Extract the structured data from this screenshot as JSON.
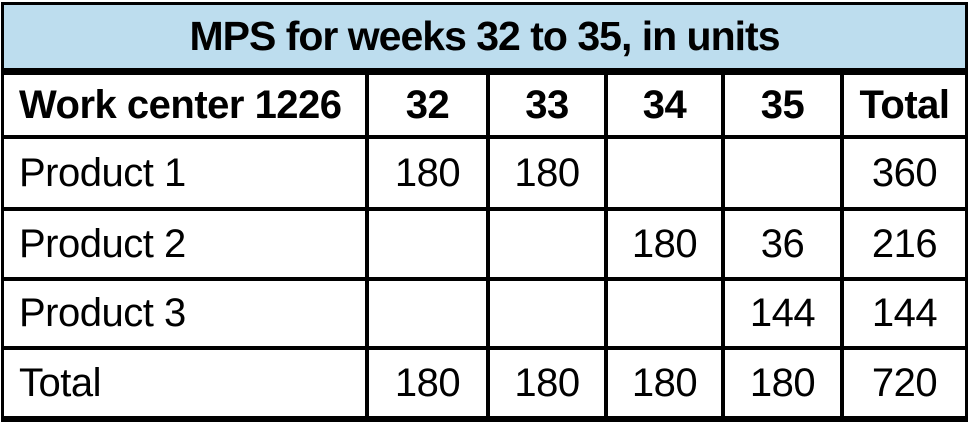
{
  "chart_data": {
    "type": "table",
    "title": "MPS for weeks 32 to 35, in units",
    "columns": [
      "Work center 1226",
      "32",
      "33",
      "34",
      "35",
      "Total"
    ],
    "rows": [
      [
        "Product 1",
        180,
        180,
        null,
        null,
        360
      ],
      [
        "Product 2",
        null,
        null,
        180,
        36,
        216
      ],
      [
        "Product 3",
        null,
        null,
        null,
        144,
        144
      ],
      [
        "Total",
        180,
        180,
        180,
        180,
        720
      ]
    ],
    "layout": {
      "title_band": "top, full width, centered bold text",
      "header_row_bold": true,
      "empty_cells": "weeks with no scheduled units are blank"
    }
  },
  "colors": {
    "title_bg": "#BDDDEE",
    "border": "#000000",
    "text": "#000000",
    "cell_bg": "#FFFFFF"
  }
}
